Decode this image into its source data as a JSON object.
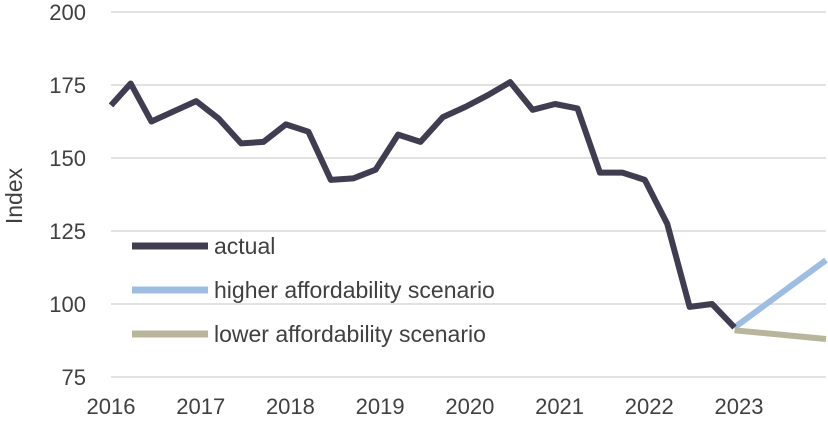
{
  "chart_data": {
    "type": "line",
    "title": "",
    "xlabel": "",
    "ylabel": "Index",
    "ylim": [
      75,
      200
    ],
    "yticks": [
      75,
      100,
      125,
      150,
      175,
      200
    ],
    "xlim": [
      2016,
      2023.97
    ],
    "xticks": [
      {
        "value": 2016,
        "label": "2016"
      },
      {
        "value": 2017,
        "label": "2017"
      },
      {
        "value": 2018,
        "label": "2018"
      },
      {
        "value": 2019,
        "label": "2019"
      },
      {
        "value": 2020,
        "label": "2020"
      },
      {
        "value": 2021,
        "label": "2021"
      },
      {
        "value": 2022,
        "label": "2022"
      },
      {
        "value": 2023,
        "label": "2023"
      }
    ],
    "grid": true,
    "legend_position": "bottom-left",
    "series": [
      {
        "name": "actual",
        "color": "#403d50",
        "points": [
          [
            2016.0,
            168
          ],
          [
            2016.22,
            175.5
          ],
          [
            2016.45,
            162.5
          ],
          [
            2016.7,
            166
          ],
          [
            2016.95,
            169.5
          ],
          [
            2017.2,
            163.5
          ],
          [
            2017.45,
            155
          ],
          [
            2017.7,
            155.5
          ],
          [
            2017.95,
            161.5
          ],
          [
            2018.2,
            159
          ],
          [
            2018.45,
            142.5
          ],
          [
            2018.7,
            143
          ],
          [
            2018.95,
            146
          ],
          [
            2019.2,
            158
          ],
          [
            2019.45,
            155.5
          ],
          [
            2019.7,
            164
          ],
          [
            2019.95,
            167.5
          ],
          [
            2020.2,
            171.5
          ],
          [
            2020.45,
            176
          ],
          [
            2020.7,
            166.5
          ],
          [
            2020.95,
            168.5
          ],
          [
            2021.2,
            167
          ],
          [
            2021.45,
            145
          ],
          [
            2021.7,
            145
          ],
          [
            2021.95,
            142.5
          ],
          [
            2022.2,
            127.5
          ],
          [
            2022.45,
            99
          ],
          [
            2022.7,
            100
          ],
          [
            2022.95,
            92
          ]
        ]
      },
      {
        "name": "higher affordability scenario",
        "color": "#9dbde2",
        "points": [
          [
            2022.95,
            92
          ],
          [
            2023.97,
            115
          ]
        ]
      },
      {
        "name": "lower affordability scenario",
        "color": "#b7b59b",
        "points": [
          [
            2022.95,
            91
          ],
          [
            2023.97,
            88
          ]
        ]
      }
    ]
  }
}
